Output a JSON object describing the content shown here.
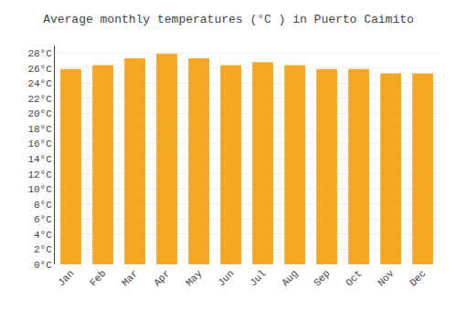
{
  "chart_data": {
    "type": "bar",
    "title": "Average monthly temperatures (°C ) in Puerto Caimito",
    "categories": [
      "Jan",
      "Feb",
      "Mar",
      "Apr",
      "May",
      "Jun",
      "Jul",
      "Aug",
      "Sep",
      "Oct",
      "Nov",
      "Dec"
    ],
    "values": [
      25.9,
      26.4,
      27.3,
      27.9,
      27.3,
      26.4,
      26.8,
      26.4,
      25.9,
      25.9,
      25.3,
      25.3
    ],
    "color": "#F5A623",
    "ylim": [
      0,
      29
    ],
    "yticks": [
      {
        "value": 0,
        "label": "0°C"
      },
      {
        "value": 2,
        "label": "2°C"
      },
      {
        "value": 4,
        "label": "4°C"
      },
      {
        "value": 6,
        "label": "6°C"
      },
      {
        "value": 8,
        "label": "8°C"
      },
      {
        "value": 10,
        "label": "10°C"
      },
      {
        "value": 12,
        "label": "12°C"
      },
      {
        "value": 14,
        "label": "14°C"
      },
      {
        "value": 16,
        "label": "16°C"
      },
      {
        "value": 18,
        "label": "18°C"
      },
      {
        "value": 20,
        "label": "20°C"
      },
      {
        "value": 22,
        "label": "22°C"
      },
      {
        "value": 24,
        "label": "24°C"
      },
      {
        "value": 26,
        "label": "26°C"
      },
      {
        "value": 28,
        "label": "28°C"
      }
    ],
    "grid": true
  }
}
